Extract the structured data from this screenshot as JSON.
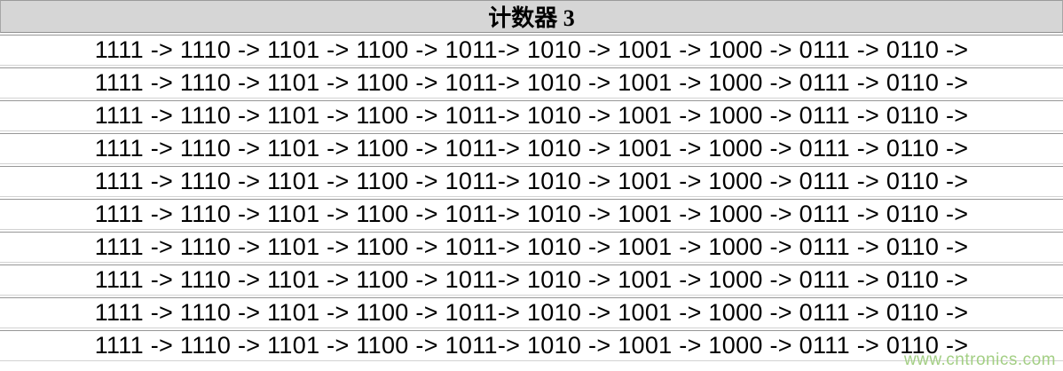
{
  "table": {
    "header": "计数器 3",
    "rows": [
      "1111 -> 1110 -> 1101 -> 1100 -> 1011-> 1010 -> 1001 -> 1000 -> 0111 -> 0110 ->",
      "1111 -> 1110 -> 1101 -> 1100 -> 1011-> 1010 -> 1001 -> 1000 -> 0111 -> 0110 ->",
      "1111 -> 1110 -> 1101 -> 1100 -> 1011-> 1010 -> 1001 -> 1000 -> 0111 -> 0110 ->",
      "1111 -> 1110 -> 1101 -> 1100 -> 1011-> 1010 -> 1001 -> 1000 -> 0111 -> 0110 ->",
      "1111 -> 1110 -> 1101 -> 1100 -> 1011-> 1010 -> 1001 -> 1000 -> 0111 -> 0110 ->",
      "1111 -> 1110 -> 1101 -> 1100 -> 1011-> 1010 -> 1001 -> 1000 -> 0111 -> 0110 ->",
      "1111 -> 1110 -> 1101 -> 1100 -> 1011-> 1010 -> 1001 -> 1000 -> 0111 -> 0110 ->",
      "1111 -> 1110 -> 1101 -> 1100 -> 1011-> 1010 -> 1001 -> 1000 -> 0111 -> 0110 ->",
      "1111 -> 1110 -> 1101 -> 1100 -> 1011-> 1010 -> 1001 -> 1000 -> 0111 -> 0110 ->",
      "1111 -> 1110 -> 1101 -> 1100 -> 1011-> 1010 -> 1001 -> 1000 -> 0111 -> 0110 ->"
    ]
  },
  "watermark": {
    "text": "www.cntronics.com"
  },
  "colors": {
    "header_bg": "#d6d6d6",
    "separator_dark": "#979797",
    "separator_light": "#d2d2d2",
    "watermark_green": "#a3cf84",
    "text": "#000000"
  }
}
